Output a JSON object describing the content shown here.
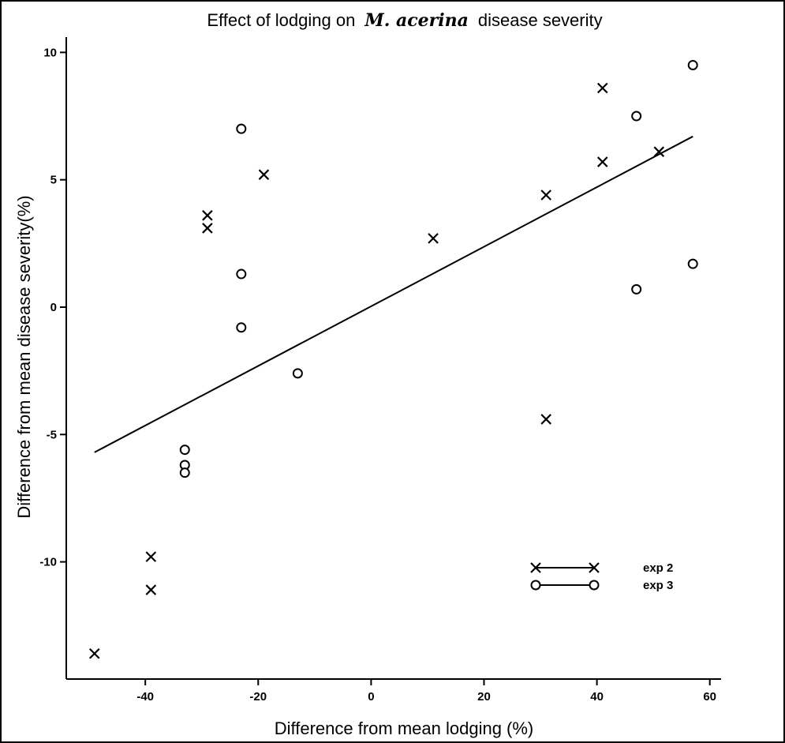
{
  "chart_data": {
    "type": "scatter",
    "title": {
      "prefix": "Effect of lodging on",
      "species": "M. acerina",
      "suffix": "disease severity"
    },
    "xlabel": "Difference from mean lodging (%)",
    "ylabel": "Difference from mean disease severity(%)",
    "xlim": [
      -54,
      62
    ],
    "ylim": [
      -14.6,
      10.6
    ],
    "xticks": [
      -40,
      -20,
      0,
      20,
      40,
      60
    ],
    "yticks": [
      -10,
      -5,
      0,
      5,
      10
    ],
    "grid": false,
    "legend_position": "bottom-right",
    "series": [
      {
        "name": "exp 2",
        "marker": "x",
        "points": [
          [
            -49,
            -13.6
          ],
          [
            -39,
            -9.8
          ],
          [
            -39,
            -11.1
          ],
          [
            -29,
            3.6
          ],
          [
            -29,
            3.1
          ],
          [
            -19,
            5.2
          ],
          [
            11,
            2.7
          ],
          [
            31,
            4.4
          ],
          [
            31,
            -4.4
          ],
          [
            41,
            8.6
          ],
          [
            41,
            5.7
          ],
          [
            51,
            6.1
          ]
        ]
      },
      {
        "name": "exp 3",
        "marker": "o",
        "points": [
          [
            -23,
            7.0
          ],
          [
            -23,
            1.3
          ],
          [
            -23,
            -0.8
          ],
          [
            -13,
            -2.6
          ],
          [
            -33,
            -5.6
          ],
          [
            -33,
            -6.2
          ],
          [
            -33,
            -6.5
          ],
          [
            47,
            7.5
          ],
          [
            47,
            0.7
          ],
          [
            57,
            9.5
          ],
          [
            57,
            1.7
          ]
        ]
      }
    ],
    "fit_line": {
      "x": [
        -49,
        57
      ],
      "y": [
        -5.7,
        6.7
      ]
    }
  }
}
